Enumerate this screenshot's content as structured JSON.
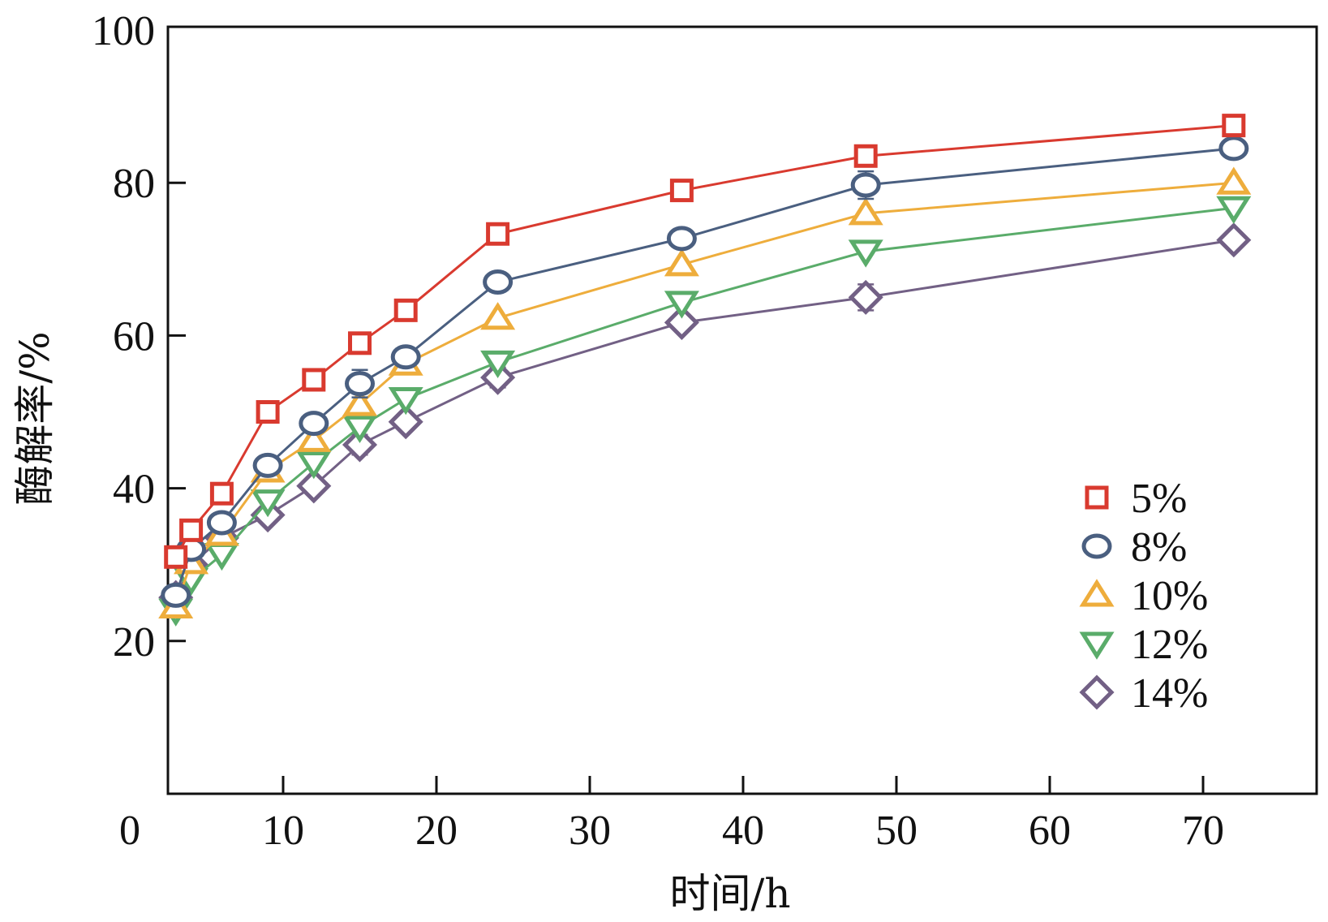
{
  "chart_data": {
    "type": "line",
    "xlabel": "时间/h",
    "ylabel": "酶解率/%",
    "xlim": [
      0,
      75
    ],
    "ylim": [
      0,
      100
    ],
    "x_ticks": [
      0,
      10,
      20,
      30,
      40,
      50,
      60,
      70
    ],
    "y_ticks": [
      20,
      40,
      60,
      80,
      100
    ],
    "grid": false,
    "legend_position": "bottom-right",
    "x": [
      3,
      4,
      6,
      9,
      12,
      15,
      18,
      24,
      36,
      48,
      72
    ],
    "series": [
      {
        "name": "5%",
        "color": "#d93a2f",
        "marker": "square",
        "values": [
          31,
          34.5,
          39.3,
          50,
          54.2,
          59,
          63.3,
          73.3,
          79,
          83.5,
          87.5
        ],
        "error": [
          0,
          0,
          0,
          0,
          0,
          0,
          0,
          0,
          0,
          0,
          0
        ]
      },
      {
        "name": "8%",
        "color": "#4a5f80",
        "marker": "circle",
        "values": [
          26,
          32,
          35.5,
          43,
          48.5,
          53.7,
          57.2,
          67,
          72.7,
          79.7,
          84.5
        ],
        "error": [
          0,
          0,
          0,
          0.6,
          0,
          1.8,
          0.5,
          0.5,
          0.6,
          1.8,
          0.6
        ]
      },
      {
        "name": "10%",
        "color": "#eead3c",
        "marker": "triangle-up",
        "values": [
          24.5,
          30.3,
          34,
          42.3,
          46.3,
          51,
          56.3,
          62.3,
          69.3,
          76,
          80
        ]
      },
      {
        "name": "12%",
        "color": "#5aac6a",
        "marker": "triangle-down",
        "values": [
          24,
          28,
          31.3,
          38.3,
          43.3,
          48,
          51.7,
          56.5,
          64.3,
          71,
          76.7
        ]
      },
      {
        "name": "14%",
        "color": "#726085",
        "marker": "diamond",
        "values": [
          25.7,
          30,
          33.5,
          36.5,
          40.3,
          45.7,
          48.7,
          54.5,
          61.7,
          65,
          72.5
        ],
        "error": [
          0,
          0,
          0,
          0,
          0,
          1.3,
          0,
          1.3,
          0.8,
          1.7,
          1
        ]
      }
    ]
  }
}
